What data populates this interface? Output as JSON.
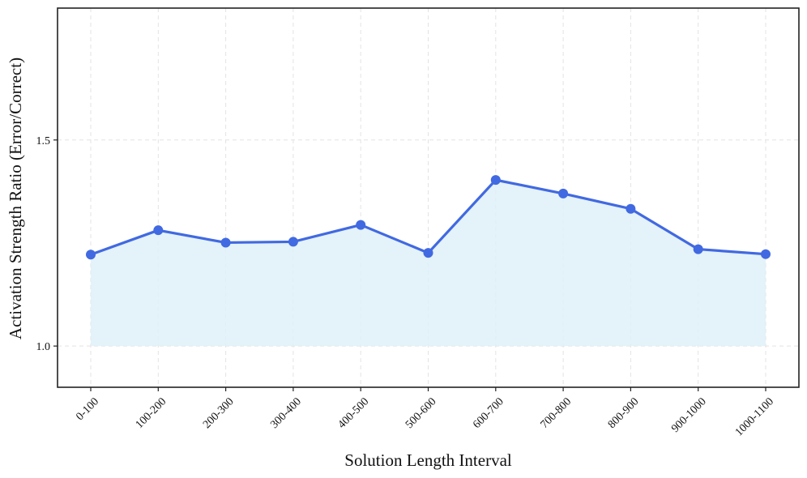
{
  "chart_data": {
    "type": "line",
    "categories": [
      "0-100",
      "100-200",
      "200-300",
      "300-400",
      "400-500",
      "500-600",
      "600-700",
      "700-800",
      "800-900",
      "900-1000",
      "1000-1100"
    ],
    "values": [
      1.222,
      1.281,
      1.251,
      1.253,
      1.294,
      1.226,
      1.403,
      1.37,
      1.333,
      1.235,
      1.223
    ],
    "fill_baseline": 1.0,
    "xlabel": "Solution Length Interval",
    "ylabel": "Activation Strength Ratio (Error/Correct)",
    "ylim": [
      0.9,
      1.82
    ],
    "yticks": [
      1.0,
      1.5
    ],
    "ytick_labels": [
      "1.0",
      "1.5"
    ],
    "grid": true,
    "colors": {
      "line": "#4169e1",
      "fill": "#dff0f8",
      "grid": "#e3e3e3",
      "frame": "#222222"
    }
  }
}
